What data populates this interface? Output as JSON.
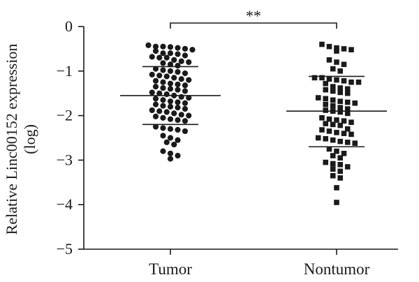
{
  "chart_data": {
    "type": "scatter",
    "subtype": "dot-plot",
    "title": "",
    "ylabel_line1": "Relative Linc00152 expression",
    "ylabel_line2": "(log)",
    "xlabel": "",
    "ylim": [
      -5,
      0
    ],
    "yticks": [
      0,
      -1,
      -2,
      -3,
      -4,
      -5
    ],
    "ytick_labels": [
      "0",
      "−1",
      "−2",
      "−3",
      "−4",
      "−5"
    ],
    "grid": false,
    "legend": "none",
    "significance": "**",
    "categories": [
      "Tumor",
      "Nontumor"
    ],
    "series": [
      {
        "category": "Tumor",
        "marker": "circle",
        "mean": -1.55,
        "sd_upper": -0.9,
        "sd_lower": -2.2,
        "values": [
          -0.42,
          -0.45,
          -0.45,
          -0.46,
          -0.48,
          -0.5,
          -0.52,
          -0.55,
          -0.6,
          -0.6,
          -0.62,
          -0.65,
          -0.68,
          -0.7,
          -0.7,
          -0.75,
          -0.78,
          -0.8,
          -0.82,
          -0.85,
          -0.88,
          -0.95,
          -0.98,
          -1.0,
          -1.02,
          -1.05,
          -1.08,
          -1.1,
          -1.12,
          -1.15,
          -1.18,
          -1.2,
          -1.22,
          -1.25,
          -1.28,
          -1.3,
          -1.32,
          -1.35,
          -1.38,
          -1.4,
          -1.42,
          -1.45,
          -1.48,
          -1.5,
          -1.52,
          -1.55,
          -1.58,
          -1.6,
          -1.62,
          -1.65,
          -1.68,
          -1.7,
          -1.72,
          -1.75,
          -1.78,
          -1.8,
          -1.82,
          -1.85,
          -1.88,
          -1.9,
          -1.92,
          -1.95,
          -1.98,
          -2.0,
          -2.02,
          -2.05,
          -2.08,
          -2.1,
          -2.12,
          -2.25,
          -2.28,
          -2.3,
          -2.32,
          -2.35,
          -2.45,
          -2.5,
          -2.55,
          -2.6,
          -2.65,
          -2.8,
          -2.85,
          -2.9,
          -2.97
        ]
      },
      {
        "category": "Nontumor",
        "marker": "square",
        "mean": -1.9,
        "sd_upper": -1.12,
        "sd_lower": -2.7,
        "values": [
          -0.4,
          -0.45,
          -0.48,
          -0.5,
          -0.52,
          -0.55,
          -0.75,
          -0.8,
          -0.85,
          -0.95,
          -1.0,
          -1.15,
          -1.15,
          -1.18,
          -1.2,
          -1.22,
          -1.25,
          -1.25,
          -1.28,
          -1.35,
          -1.38,
          -1.4,
          -1.42,
          -1.45,
          -1.48,
          -1.5,
          -1.6,
          -1.62,
          -1.65,
          -1.68,
          -1.7,
          -1.72,
          -1.75,
          -1.78,
          -1.82,
          -1.85,
          -1.88,
          -1.9,
          -1.92,
          -1.95,
          -2.05,
          -2.08,
          -2.1,
          -2.12,
          -2.15,
          -2.18,
          -2.2,
          -2.22,
          -2.3,
          -2.32,
          -2.35,
          -2.38,
          -2.4,
          -2.42,
          -2.5,
          -2.52,
          -2.55,
          -2.58,
          -2.6,
          -2.62,
          -2.75,
          -2.8,
          -2.85,
          -2.9,
          -2.95,
          -3.05,
          -3.08,
          -3.1,
          -3.15,
          -3.2,
          -3.25,
          -3.35,
          -3.4,
          -3.62,
          -3.95
        ]
      }
    ]
  }
}
